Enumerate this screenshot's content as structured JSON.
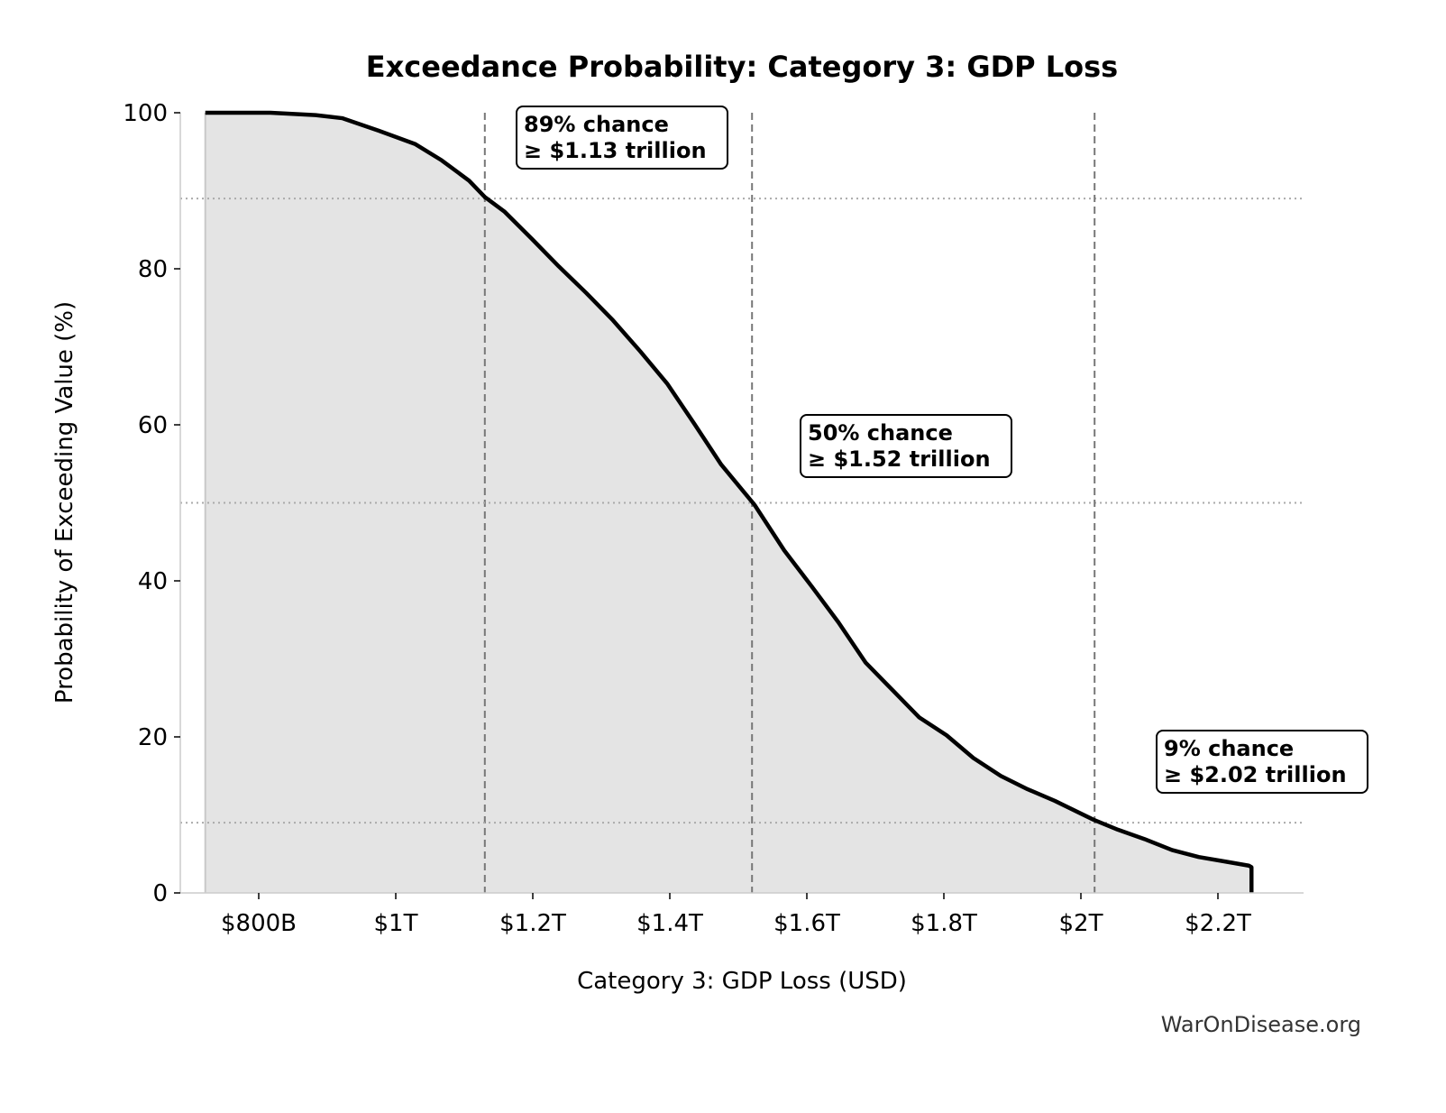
{
  "chart_data": {
    "type": "area",
    "title": "Exceedance Probability: Category 3: GDP Loss",
    "xlabel": "Category 3: GDP Loss (USD)",
    "ylabel": "Probability of Exceeding Value (%)",
    "xlim": [
      0.686,
      2.325
    ],
    "ylim": [
      0,
      100
    ],
    "x_unit": "trillion USD",
    "x_ticks": [
      {
        "value": 0.8,
        "label": "$800B"
      },
      {
        "value": 1.0,
        "label": "$1T"
      },
      {
        "value": 1.2,
        "label": "$1.2T"
      },
      {
        "value": 1.4,
        "label": "$1.4T"
      },
      {
        "value": 1.6,
        "label": "$1.6T"
      },
      {
        "value": 1.8,
        "label": "$1.8T"
      },
      {
        "value": 2.0,
        "label": "$2T"
      },
      {
        "value": 2.2,
        "label": "$2.2T"
      }
    ],
    "y_ticks": [
      0,
      20,
      40,
      60,
      80,
      100
    ],
    "grid": false,
    "line_color": "#000000",
    "fill_color": "#e4e4e4",
    "series": [
      {
        "x": [
          0.722,
          0.817,
          0.883,
          0.922,
          0.975,
          1.028,
          1.067,
          1.107,
          1.13,
          1.159,
          1.199,
          1.238,
          1.278,
          1.317,
          1.357,
          1.396,
          1.436,
          1.475,
          1.524,
          1.567,
          1.607,
          1.646,
          1.686,
          1.725,
          1.764,
          1.804,
          1.843,
          1.883,
          1.922,
          1.962,
          2.018,
          2.054,
          2.093,
          2.133,
          2.172,
          2.212,
          2.245,
          2.249,
          2.249
        ],
        "y": [
          100,
          100,
          99.7,
          99.3,
          97.7,
          96,
          93.9,
          91.3,
          89.2,
          87.3,
          83.8,
          80.3,
          76.9,
          73.4,
          69.4,
          65.3,
          60.1,
          54.9,
          49.7,
          43.9,
          39.3,
          34.7,
          29.5,
          26,
          22.5,
          20.2,
          17.3,
          15,
          13.3,
          11.8,
          9.4,
          8.1,
          6.9,
          5.5,
          4.6,
          4.0,
          3.5,
          3.3,
          0
        ]
      }
    ],
    "reference_lines": [
      {
        "prob": 89,
        "value": 1.13
      },
      {
        "prob": 50,
        "value": 1.52
      },
      {
        "prob": 9,
        "value": 2.02
      }
    ],
    "annotations": [
      {
        "line1": "89% chance",
        "line2": "≥ $1.13 trillion"
      },
      {
        "line1": "50% chance",
        "line2": "≥ $1.52 trillion"
      },
      {
        "line1": "9% chance",
        "line2": "≥ $2.02 trillion"
      }
    ]
  },
  "watermark": "WarOnDisease.org"
}
